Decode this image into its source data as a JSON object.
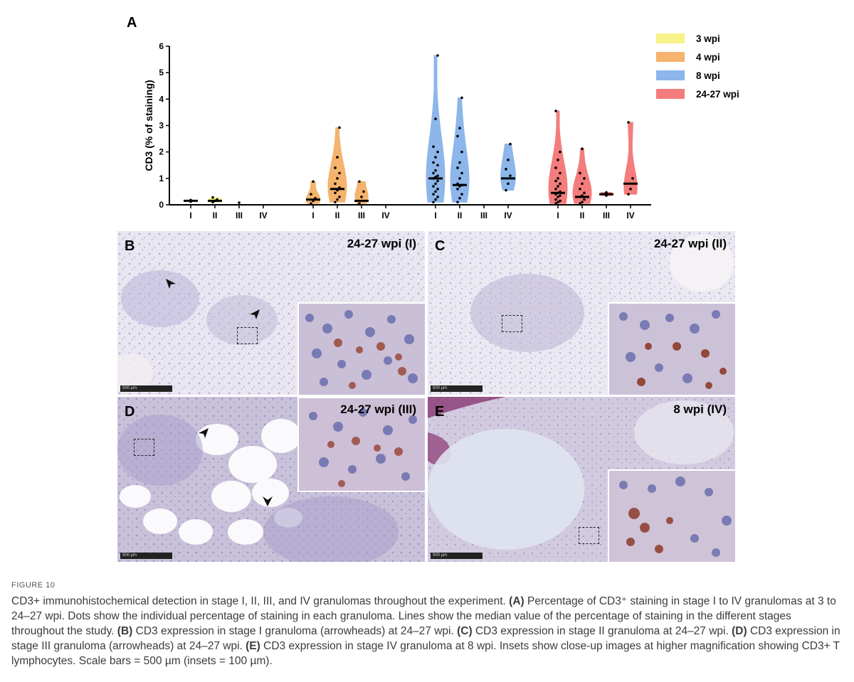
{
  "chart_data": {
    "type": "violin",
    "panel_label": "A",
    "ylabel": "CD3 (% of staining)",
    "ylim": [
      0,
      6
    ],
    "yticks": [
      0,
      1,
      2,
      3,
      4,
      5,
      6
    ],
    "series": [
      {
        "name": "3 wpi",
        "color": "#f7f28a",
        "groups": [
          {
            "stage": "I",
            "median": 0.15,
            "points": [
              0.12,
              0.17,
              0.18
            ]
          },
          {
            "stage": "II",
            "median": 0.15,
            "points": [
              0.1,
              0.15,
              0.2,
              0.28
            ]
          },
          {
            "stage": "III",
            "median": null,
            "points": [
              0.08
            ]
          },
          {
            "stage": "IV",
            "median": null,
            "points": []
          }
        ]
      },
      {
        "name": "4 wpi",
        "color": "#f5b36e",
        "groups": [
          {
            "stage": "I",
            "median": 0.2,
            "points": [
              0.05,
              0.15,
              0.25,
              0.4,
              0.88
            ]
          },
          {
            "stage": "II",
            "median": 0.6,
            "points": [
              0.1,
              0.2,
              0.3,
              0.45,
              0.55,
              0.65,
              0.8,
              1.0,
              1.2,
              1.4,
              1.8,
              2.92
            ]
          },
          {
            "stage": "III",
            "median": 0.15,
            "points": [
              0.05,
              0.3,
              0.5,
              0.88
            ]
          },
          {
            "stage": "IV",
            "median": null,
            "points": []
          }
        ]
      },
      {
        "name": "8 wpi",
        "color": "#8db6ea",
        "groups": [
          {
            "stage": "I",
            "median": 1.0,
            "points": [
              0.1,
              0.2,
              0.3,
              0.4,
              0.5,
              0.6,
              0.7,
              0.8,
              0.9,
              1.0,
              1.05,
              1.1,
              1.2,
              1.3,
              1.5,
              1.6,
              1.8,
              2.0,
              2.2,
              3.25,
              5.65
            ]
          },
          {
            "stage": "II",
            "median": 0.75,
            "points": [
              0.1,
              0.25,
              0.4,
              0.6,
              0.7,
              0.75,
              0.8,
              1.0,
              1.2,
              1.4,
              1.6,
              2.0,
              2.6,
              2.9,
              4.05
            ]
          },
          {
            "stage": "III",
            "median": null,
            "points": []
          },
          {
            "stage": "IV",
            "median": 1.0,
            "points": [
              0.55,
              0.8,
              1.1,
              1.35,
              1.7,
              2.3
            ]
          }
        ]
      },
      {
        "name": "24-27 wpi",
        "color": "#f47c7c",
        "groups": [
          {
            "stage": "I",
            "median": 0.45,
            "points": [
              0.05,
              0.1,
              0.15,
              0.2,
              0.3,
              0.35,
              0.4,
              0.45,
              0.5,
              0.6,
              0.7,
              0.8,
              0.9,
              1.0,
              1.2,
              1.4,
              1.7,
              2.0,
              3.55
            ]
          },
          {
            "stage": "II",
            "median": 0.3,
            "points": [
              0.05,
              0.1,
              0.2,
              0.3,
              0.35,
              0.45,
              0.6,
              0.8,
              1.0,
              1.2,
              2.12
            ]
          },
          {
            "stage": "III",
            "median": 0.4,
            "points": [
              0.35,
              0.4,
              0.47
            ]
          },
          {
            "stage": "IV",
            "median": 0.8,
            "points": [
              0.4,
              0.6,
              1.0,
              3.12
            ]
          }
        ]
      }
    ],
    "legend_position": "top-right"
  },
  "panels": [
    {
      "letter": "B",
      "title": "24-27 wpi (I)",
      "scale": "500 µm"
    },
    {
      "letter": "C",
      "title": "24-27 wpi (II)",
      "scale": "500 µm"
    },
    {
      "letter": "D",
      "title": "24-27 wpi (III)",
      "scale": "500 µm"
    },
    {
      "letter": "E",
      "title": "8 wpi (IV)",
      "scale": "500 µm"
    }
  ],
  "figure_label": "FIGURE 10",
  "caption": {
    "intro": "CD3+ immunohistochemical detection in stage I, II, III, and IV granulomas throughout the experiment.",
    "a_label": "(A)",
    "a_text": "Percentage of CD3⁺ staining in stage I to IV granulomas at 3 to 24–27 wpi. Dots show the individual percentage of staining in each granuloma. Lines show the median value of the percentage of staining in the different stages throughout the study.",
    "b_label": "(B)",
    "b_text": "CD3 expression in stage I granuloma (arrowheads) at 24–27 wpi.",
    "c_label": "(C)",
    "c_text": "CD3 expression in stage II granuloma at 24–27 wpi.",
    "d_label": "(D)",
    "d_text": "CD3 expression in stage III granuloma (arrowheads) at 24–27 wpi.",
    "e_label": "(E)",
    "e_text": "CD3 expression in stage IV granuloma at 8 wpi.",
    "outro": "Insets show close-up images at higher magnification showing CD3+ T lymphocytes. Scale bars = 500 µm (insets = 100 µm)."
  }
}
